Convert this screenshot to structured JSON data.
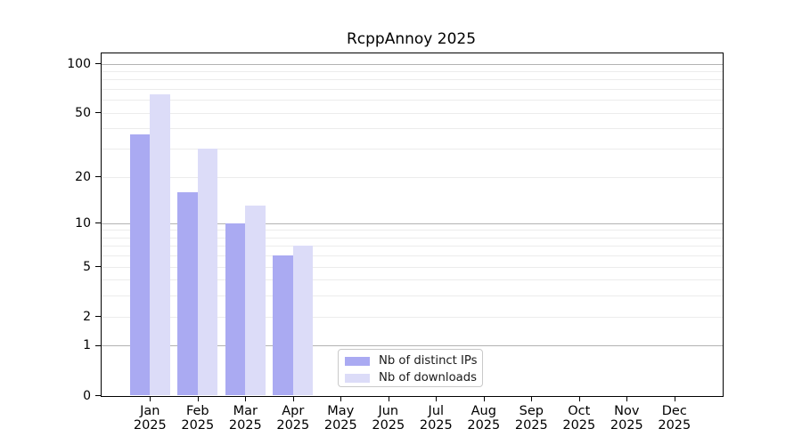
{
  "chart_data": {
    "type": "bar",
    "title": "RcppAnnoy 2025",
    "categories": [
      "Jan",
      "Feb",
      "Mar",
      "Apr",
      "May",
      "Jun",
      "Jul",
      "Aug",
      "Sep",
      "Oct",
      "Nov",
      "Dec"
    ],
    "category_subline": "2025",
    "series": [
      {
        "name": "Nb of distinct IPs",
        "color": "#aaaaf2",
        "values": [
          37,
          16,
          10,
          6,
          0,
          0,
          0,
          0,
          0,
          0,
          0,
          0
        ]
      },
      {
        "name": "Nb of downloads",
        "color": "#dcdcf8",
        "values": [
          65,
          30,
          13,
          7,
          0,
          0,
          0,
          0,
          0,
          0,
          0,
          0
        ]
      }
    ],
    "yscale": "log10(value+1)",
    "ylim": [
      0,
      114
    ],
    "ytick_labels": [
      "0",
      "1",
      "2",
      "5",
      "10",
      "20",
      "50",
      "100"
    ],
    "ytick_values": [
      0,
      1,
      2,
      5,
      10,
      20,
      50,
      100
    ],
    "major_gridlines": [
      1,
      10,
      100
    ],
    "minor_gridlines": [
      2,
      3,
      4,
      5,
      6,
      7,
      8,
      9,
      20,
      30,
      40,
      50,
      60,
      70,
      80,
      90
    ],
    "grid": "horizontal",
    "legend_position": "bottom-center-right"
  },
  "colors": {
    "bar_distinct_ips": "#aaaaf2",
    "bar_downloads": "#dcdcf8",
    "major_gridline": "#b3b3b3",
    "minor_gridline": "#ececec",
    "legend_border": "#c9c9c9",
    "axis": "#000000"
  }
}
